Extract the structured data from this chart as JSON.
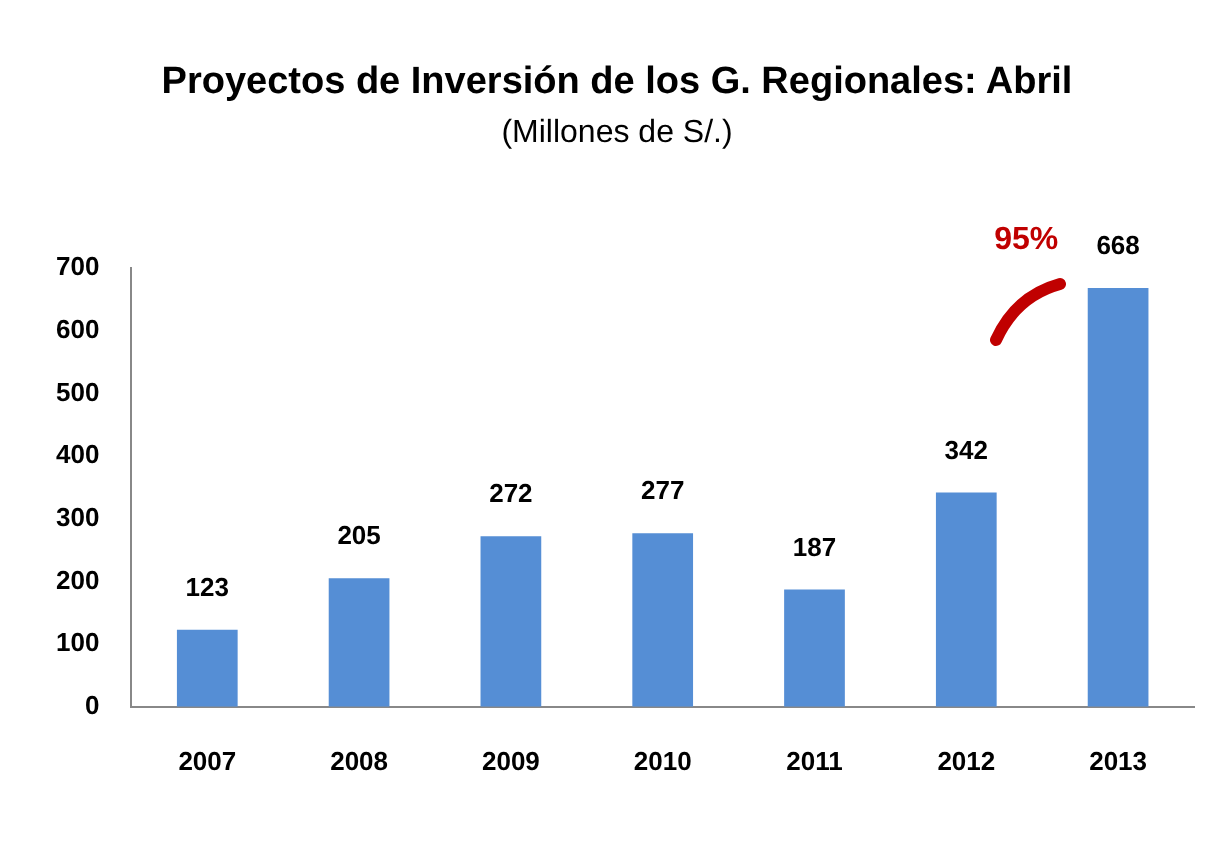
{
  "chart_data": {
    "type": "bar",
    "title": "Proyectos de Inversión de los G. Regionales: Abril",
    "subtitle": "(Millones de S/.)",
    "categories": [
      "2007",
      "2008",
      "2009",
      "2010",
      "2011",
      "2012",
      "2013"
    ],
    "values": [
      123,
      205,
      272,
      277,
      187,
      342,
      668
    ],
    "color": "#558ed5",
    "ylim": [
      0,
      700
    ],
    "yticks": [
      0,
      100,
      200,
      300,
      400,
      500,
      600,
      700
    ],
    "grid": false,
    "legend": false,
    "data_labels": true,
    "annotations": [
      "95%"
    ]
  }
}
